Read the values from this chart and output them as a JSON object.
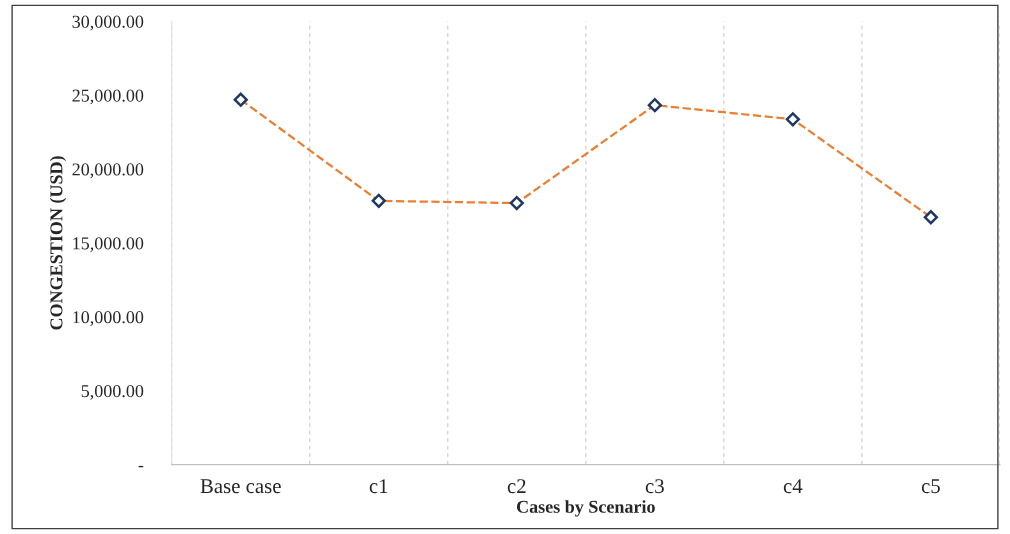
{
  "chart_data": {
    "type": "line",
    "xlabel": "Cases by Scenario",
    "ylabel": "CONGESTION (USD)",
    "categories": [
      "Base case",
      "c1",
      "c2",
      "c3",
      "c4",
      "c5"
    ],
    "series": [
      {
        "color": "#ed7d31",
        "values": [
          24700,
          17850,
          17700,
          24330,
          23370,
          16740
        ]
      }
    ],
    "ylim": [
      0,
      30000
    ],
    "yticks": [
      {
        "value": 0,
        "label": "-"
      },
      {
        "value": 5000,
        "label": "5,000.00"
      },
      {
        "value": 10000,
        "label": "10,000.00"
      },
      {
        "value": 15000,
        "label": "15,000.00"
      },
      {
        "value": 20000,
        "label": "20,000.00"
      },
      {
        "value": 25000,
        "label": "25,000.00"
      },
      {
        "value": 30000,
        "label": "30,000.00"
      }
    ],
    "grid": "x",
    "marker": "diamond",
    "line_style": "dashed",
    "legend": false
  }
}
